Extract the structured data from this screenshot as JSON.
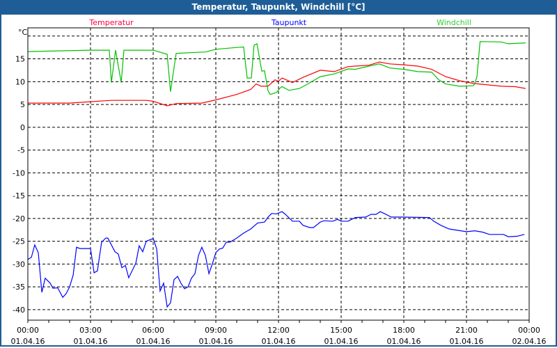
{
  "window": {
    "title": "Temperatur, Taupunkt, Windchill [°C]"
  },
  "chart_data": {
    "type": "line",
    "title": "Temperatur, Taupunkt, Windchill [°C]",
    "ylabel": "°C",
    "xlabel": "",
    "ylim": [
      -42.3,
      21.8
    ],
    "xlim_hours": [
      0,
      24
    ],
    "grid": true,
    "legend_placement": "top",
    "yticks": [
      15,
      10,
      5,
      0,
      -5,
      -10,
      -15,
      -20,
      -25,
      -30,
      -35,
      -40
    ],
    "ygrid": [
      20,
      15,
      10,
      5,
      0,
      -5,
      -10,
      -15,
      -20,
      -25,
      -30,
      -35,
      -40
    ],
    "xticks": [
      {
        "h": 0,
        "time": "00:00",
        "date": "01.04.16"
      },
      {
        "h": 3,
        "time": "03:00",
        "date": "01.04.16"
      },
      {
        "h": 6,
        "time": "06:00",
        "date": "01.04.16"
      },
      {
        "h": 9,
        "time": "09:00",
        "date": "01.04.16"
      },
      {
        "h": 12,
        "time": "12:00",
        "date": "01.04.16"
      },
      {
        "h": 15,
        "time": "15:00",
        "date": "01.04.16"
      },
      {
        "h": 18,
        "time": "18:00",
        "date": "01.04.16"
      },
      {
        "h": 21,
        "time": "21:00",
        "date": "01.04.16"
      },
      {
        "h": 24,
        "time": "00:00",
        "date": "02.04.16"
      }
    ],
    "series": [
      {
        "name": "Temperatur",
        "color": "#ff0000",
        "legend_color": "#ff0040",
        "x": [
          0,
          2,
          3,
          4,
          5.67,
          6,
          6.67,
          7.1,
          8.33,
          9,
          10,
          10.67,
          10.93,
          11.17,
          11.5,
          11.83,
          12,
          12.17,
          12.67,
          13.2,
          14,
          14.67,
          15.33,
          16.33,
          16.83,
          17.33,
          18,
          18.67,
          19.33,
          20,
          20.67,
          21.33,
          22,
          22.67,
          23.33,
          23.83
        ],
        "values": [
          5.3,
          5.3,
          5.6,
          5.9,
          5.9,
          5.7,
          4.7,
          5.2,
          5.3,
          6,
          7.2,
          8.3,
          9.5,
          9.0,
          9.0,
          10.4,
          10.1,
          10.8,
          9.8,
          11,
          12.5,
          12.2,
          13.3,
          13.6,
          14.3,
          13.9,
          13.7,
          13.4,
          12.7,
          11.1,
          10.2,
          9.6,
          9.3,
          9,
          8.9,
          8.5
        ]
      },
      {
        "name": "Taupunkt",
        "color": "#0000ff",
        "legend_color": "#0000ff",
        "x": [
          0,
          0.17,
          0.33,
          0.5,
          0.67,
          0.83,
          1.07,
          1.2,
          1.43,
          1.67,
          1.83,
          2,
          2.17,
          2.33,
          2.5,
          3,
          3.17,
          3.33,
          3.53,
          3.73,
          3.83,
          4.17,
          4.33,
          4.5,
          4.67,
          4.83,
          5.17,
          5.33,
          5.5,
          5.67,
          6,
          6.17,
          6.33,
          6.5,
          6.67,
          6.83,
          7,
          7.17,
          7.33,
          7.5,
          7.67,
          7.83,
          8,
          8.17,
          8.33,
          8.5,
          8.67,
          8.83,
          9,
          9.17,
          9.33,
          9.5,
          9.67,
          10,
          10.33,
          10.67,
          11,
          11.33,
          11.5,
          11.67,
          11.9,
          12.17,
          12.33,
          12.67,
          13,
          13.17,
          13.5,
          13.67,
          14,
          14.17,
          14.6,
          14.83,
          15,
          15.33,
          15.67,
          16.17,
          16.43,
          16.67,
          16.87,
          17.1,
          17.4,
          17.9,
          19.23,
          19.43,
          19.77,
          20.17,
          21,
          21.4,
          21.77,
          22.1,
          22.77,
          23,
          23.43,
          23.77
        ],
        "values": [
          -29,
          -28.5,
          -25.8,
          -27.5,
          -36.2,
          -33.1,
          -34.2,
          -35.3,
          -35.2,
          -37.3,
          -36.5,
          -35,
          -32.4,
          -26.3,
          -26.6,
          -26.6,
          -31.9,
          -31.5,
          -25.2,
          -24.3,
          -24.3,
          -27.3,
          -27.8,
          -30.8,
          -30.3,
          -33,
          -29.8,
          -26,
          -27.3,
          -25,
          -24.4,
          -26.7,
          -35.9,
          -34.2,
          -39.4,
          -38.5,
          -33.4,
          -32.7,
          -34.2,
          -35.4,
          -35,
          -33.1,
          -32.1,
          -28.1,
          -26.3,
          -28.1,
          -32.1,
          -30,
          -27.5,
          -26.7,
          -26.5,
          -25.2,
          -25.2,
          -24.3,
          -23.2,
          -22.3,
          -21,
          -20.8,
          -19.7,
          -18.9,
          -19,
          -18.5,
          -19.1,
          -20.6,
          -20.6,
          -21.5,
          -22,
          -22,
          -20.8,
          -20.5,
          -20.6,
          -20.2,
          -20.6,
          -20.6,
          -19.8,
          -19.7,
          -19.1,
          -19.1,
          -18.5,
          -19,
          -19.7,
          -19.7,
          -19.8,
          -20.6,
          -21.5,
          -22.3,
          -22.9,
          -22.7,
          -23,
          -23.5,
          -23.5,
          -24,
          -23.9,
          -23.5
        ]
      },
      {
        "name": "Windchill",
        "color": "#00c000",
        "legend_color": "#33cc33",
        "x": [
          0,
          3,
          3.9,
          4.0,
          4.2,
          4.47,
          4.6,
          6,
          6.67,
          6.83,
          7.1,
          8.5,
          9,
          10,
          10.33,
          10.5,
          10.7,
          10.83,
          10.97,
          11.2,
          11.33,
          11.5,
          11.6,
          11.9,
          12.1,
          12.17,
          12.5,
          13,
          13.33,
          14,
          14.67,
          15.33,
          15.67,
          16.33,
          16.83,
          17.33,
          18,
          18.67,
          19.33,
          19.67,
          20,
          20.67,
          21.33,
          21.4,
          21.5,
          21.65,
          22.67,
          23,
          23.83
        ],
        "values": [
          16.6,
          16.9,
          16.9,
          9.8,
          16.9,
          9.8,
          16.9,
          16.9,
          16,
          7.8,
          16.2,
          16.5,
          17.1,
          17.5,
          17.6,
          10.8,
          10.8,
          18,
          18.3,
          12.3,
          12.4,
          8.0,
          7.2,
          7.6,
          8.7,
          8.9,
          8.1,
          8.5,
          9.3,
          11.1,
          11.7,
          12.8,
          12.7,
          13.4,
          13.9,
          13,
          12.7,
          12.2,
          12.1,
          10.4,
          9.5,
          9.0,
          9.1,
          9.6,
          11.1,
          18.8,
          18.7,
          18.3,
          18.5
        ]
      }
    ]
  }
}
